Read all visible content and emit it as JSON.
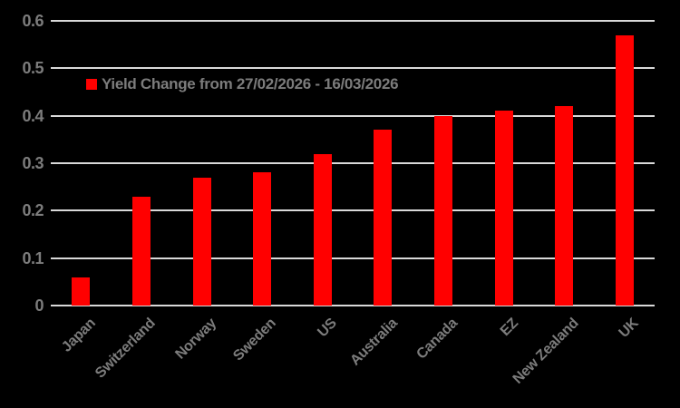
{
  "chart_data": {
    "type": "bar",
    "title": "",
    "legend": "Yield Change from 27/02/2026 - 16/03/2026",
    "legend_position": "upper-left-inside",
    "categories": [
      "Japan",
      "Switzerland",
      "Norway",
      "Sweden",
      "US",
      "Australia",
      "Canada",
      "EZ",
      "New Zealand",
      "UK"
    ],
    "values": [
      0.06,
      0.23,
      0.27,
      0.28,
      0.32,
      0.37,
      0.4,
      0.41,
      0.42,
      0.57
    ],
    "xlabel": "",
    "ylabel": "",
    "ylim": [
      0,
      0.6
    ],
    "ytick_step": 0.1,
    "yticks": [
      "0",
      "0.1",
      "0.2",
      "0.3",
      "0.4",
      "0.5",
      "0.6"
    ],
    "grid": true,
    "colors": {
      "background": "#000000",
      "bar": "#ff0000",
      "gridline": "#d9d9d9",
      "text": "#7c7c7c"
    }
  }
}
